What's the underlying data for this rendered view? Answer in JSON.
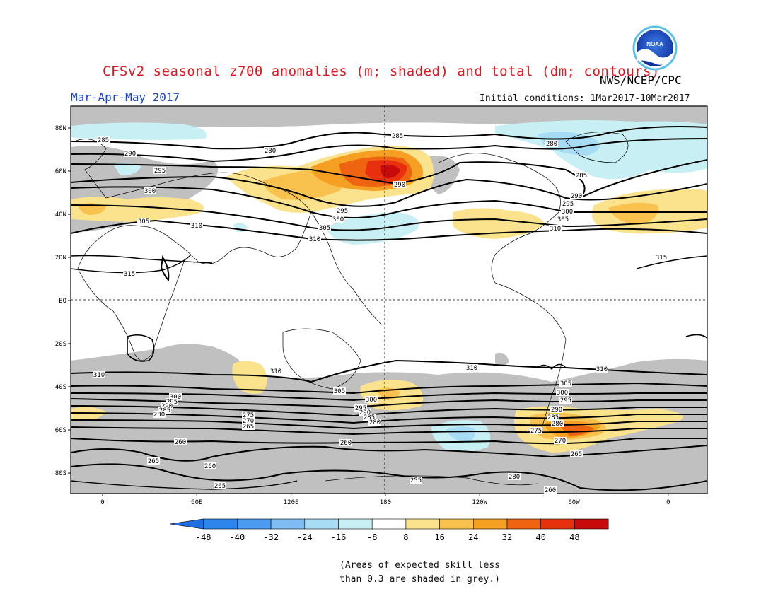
{
  "title": "CFSv2 seasonal z700 anomalies (m; shaded) and total (dm; contours)",
  "agency": "NWS/NCEP/CPC",
  "logo_text": "NOAA",
  "season": "Mar-Apr-May 2017",
  "initial_conditions": "Initial conditions: 1Mar2017-10Mar2017",
  "lat_labels": [
    "80N",
    "60N",
    "40N",
    "20N",
    "EQ",
    "20S",
    "40S",
    "60S",
    "80S"
  ],
  "lon_labels": [
    "0",
    "60E",
    "120E",
    "180",
    "120W",
    "60W",
    "0"
  ],
  "colorbar": {
    "values": [
      "-48",
      "-40",
      "-32",
      "-24",
      "-16",
      "-8",
      "8",
      "16",
      "24",
      "32",
      "40",
      "48"
    ],
    "colors": [
      "#1f6fe0",
      "#2e86ec",
      "#4b9cf0",
      "#7fbcf4",
      "#a8dcf4",
      "#c8f0f4",
      "#ffffff",
      "#fae38c",
      "#f9c24f",
      "#f5a023",
      "#ee6410",
      "#e8300e",
      "#c80a0a",
      "#a00000"
    ]
  },
  "contour_labels": [
    {
      "text": "285"
    },
    {
      "text": "290"
    },
    {
      "text": "295"
    },
    {
      "text": "300"
    },
    {
      "text": "305"
    },
    {
      "text": "310"
    },
    {
      "text": "315"
    },
    {
      "text": "280"
    },
    {
      "text": "285"
    },
    {
      "text": "290"
    },
    {
      "text": "295"
    },
    {
      "text": "300"
    },
    {
      "text": "305"
    },
    {
      "text": "310"
    },
    {
      "text": "280"
    },
    {
      "text": "285"
    },
    {
      "text": "290"
    },
    {
      "text": "295"
    },
    {
      "text": "300"
    },
    {
      "text": "305"
    },
    {
      "text": "310"
    },
    {
      "text": "315"
    },
    {
      "text": "310"
    },
    {
      "text": "300"
    },
    {
      "text": "295"
    },
    {
      "text": "290"
    },
    {
      "text": "285"
    },
    {
      "text": "280"
    },
    {
      "text": "275"
    },
    {
      "text": "270"
    },
    {
      "text": "265"
    },
    {
      "text": "260"
    },
    {
      "text": "265"
    },
    {
      "text": "260"
    },
    {
      "text": "265"
    },
    {
      "text": "310"
    },
    {
      "text": "305"
    },
    {
      "text": "300"
    },
    {
      "text": "295"
    },
    {
      "text": "290"
    },
    {
      "text": "285"
    },
    {
      "text": "280"
    },
    {
      "text": "260"
    },
    {
      "text": "255"
    },
    {
      "text": "310"
    },
    {
      "text": "310"
    },
    {
      "text": "305"
    },
    {
      "text": "300"
    },
    {
      "text": "295"
    },
    {
      "text": "290"
    },
    {
      "text": "285"
    },
    {
      "text": "280"
    },
    {
      "text": "275"
    },
    {
      "text": "270"
    },
    {
      "text": "265"
    },
    {
      "text": "280"
    },
    {
      "text": "260"
    }
  ],
  "note_line1": "(Areas of expected skill less",
  "note_line2": "than 0.3 are shaded in grey.)"
}
